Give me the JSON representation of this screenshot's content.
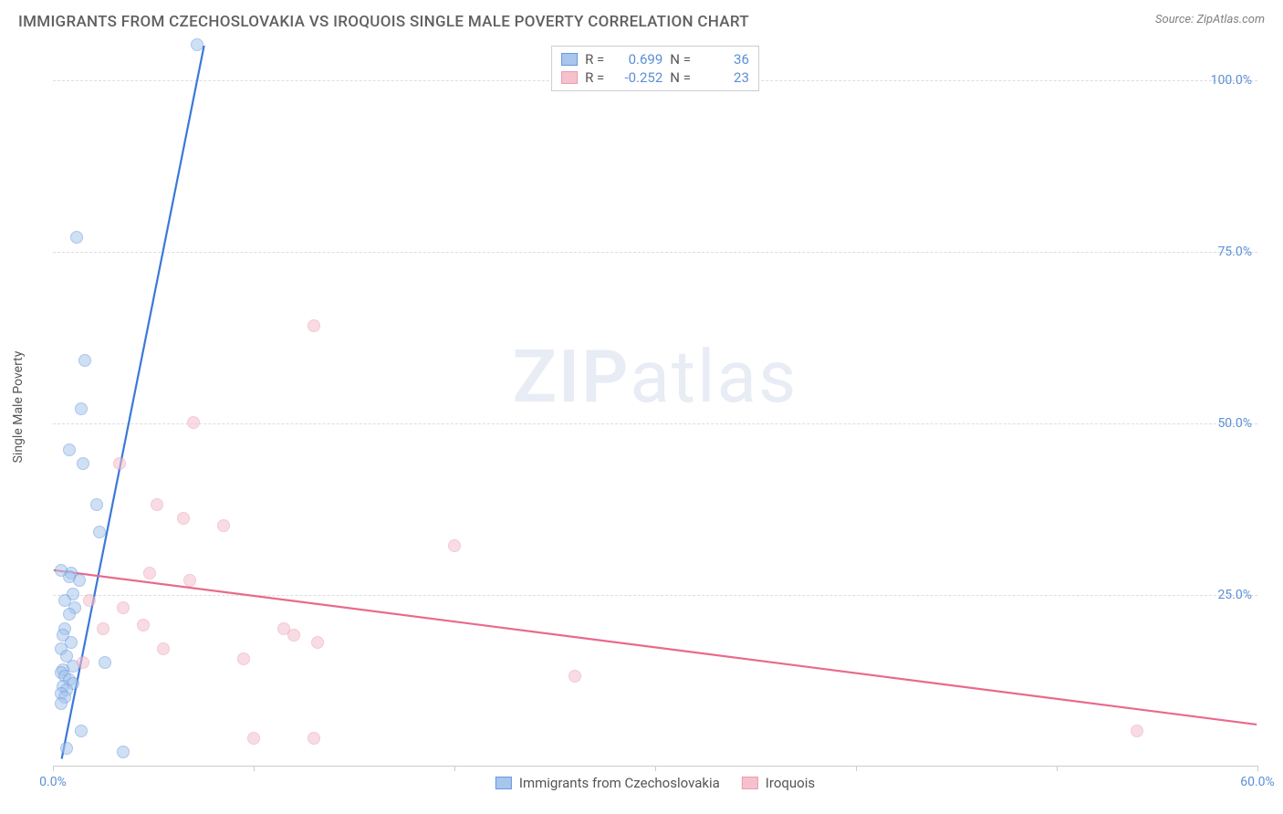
{
  "title": "IMMIGRANTS FROM CZECHOSLOVAKIA VS IROQUOIS SINGLE MALE POVERTY CORRELATION CHART",
  "source_label": "Source:",
  "source_name": "ZipAtlas.com",
  "y_axis_label": "Single Male Poverty",
  "watermark": {
    "bold": "ZIP",
    "light": "atlas"
  },
  "chart": {
    "type": "scatter",
    "xlim": [
      0,
      60
    ],
    "ylim": [
      0,
      105
    ],
    "background_color": "#ffffff",
    "grid_color": "#dddddd",
    "axis_color": "#cccccc",
    "tick_label_color": "#5b8fd6",
    "x_ticks": [
      0,
      10,
      20,
      30,
      40,
      50,
      60
    ],
    "x_tick_labels": [
      "0.0%",
      "",
      "",
      "",
      "",
      "",
      "60.0%"
    ],
    "y_ticks": [
      25,
      50,
      75,
      100
    ],
    "y_tick_labels": [
      "25.0%",
      "50.0%",
      "75.0%",
      "100.0%"
    ],
    "point_radius": 7,
    "point_opacity": 0.55,
    "line_width": 2.2,
    "series": [
      {
        "name": "Immigrants from Czechoslovakia",
        "color_fill": "#a8c5ec",
        "color_stroke": "#6699dd",
        "line_color": "#3b78d8",
        "r_value": "0.699",
        "n_value": "36",
        "trend": {
          "x1": 0.4,
          "y1": 1,
          "x2": 7.5,
          "y2": 105
        },
        "points": [
          [
            7.2,
            105
          ],
          [
            1.2,
            77
          ],
          [
            1.6,
            59
          ],
          [
            1.4,
            52
          ],
          [
            0.8,
            46
          ],
          [
            1.5,
            44
          ],
          [
            2.2,
            38
          ],
          [
            2.3,
            34
          ],
          [
            0.9,
            28
          ],
          [
            1.3,
            27
          ],
          [
            0.8,
            27.5
          ],
          [
            1.0,
            25
          ],
          [
            0.6,
            24
          ],
          [
            1.1,
            23
          ],
          [
            0.8,
            22
          ],
          [
            0.6,
            20
          ],
          [
            0.5,
            19
          ],
          [
            0.9,
            18
          ],
          [
            0.4,
            17
          ],
          [
            0.7,
            16
          ],
          [
            2.6,
            15
          ],
          [
            1.0,
            14.5
          ],
          [
            0.5,
            14
          ],
          [
            0.4,
            13.5
          ],
          [
            0.6,
            13
          ],
          [
            0.8,
            12.5
          ],
          [
            1.0,
            12
          ],
          [
            0.5,
            11.5
          ],
          [
            0.7,
            11
          ],
          [
            0.4,
            10.5
          ],
          [
            0.6,
            10
          ],
          [
            0.4,
            9
          ],
          [
            1.4,
            5
          ],
          [
            3.5,
            2
          ],
          [
            0.7,
            2.5
          ],
          [
            0.4,
            28.5
          ]
        ]
      },
      {
        "name": "Iroquois",
        "color_fill": "#f5c1cd",
        "color_stroke": "#ec9bb2",
        "line_color": "#e86a8a",
        "r_value": "-0.252",
        "n_value": "23",
        "trend": {
          "x1": 0,
          "y1": 28.5,
          "x2": 60,
          "y2": 6
        },
        "points": [
          [
            13,
            64
          ],
          [
            7,
            50
          ],
          [
            3.3,
            44
          ],
          [
            5.2,
            38
          ],
          [
            6.5,
            36
          ],
          [
            8.5,
            35
          ],
          [
            20,
            32
          ],
          [
            4.8,
            28
          ],
          [
            6.8,
            27
          ],
          [
            1.8,
            24
          ],
          [
            3.5,
            23
          ],
          [
            2.5,
            20
          ],
          [
            4.5,
            20.5
          ],
          [
            5.5,
            17
          ],
          [
            12,
            19
          ],
          [
            1.5,
            15
          ],
          [
            10,
            4
          ],
          [
            13,
            4
          ],
          [
            26,
            13
          ],
          [
            54,
            5
          ],
          [
            9.5,
            15.5
          ],
          [
            11.5,
            20
          ],
          [
            13.2,
            18
          ]
        ]
      }
    ]
  },
  "legend_top": {
    "r_label": "R =",
    "n_label": "N ="
  },
  "legend_bottom_labels": [
    "Immigrants from Czechoslovakia",
    "Iroquois"
  ]
}
